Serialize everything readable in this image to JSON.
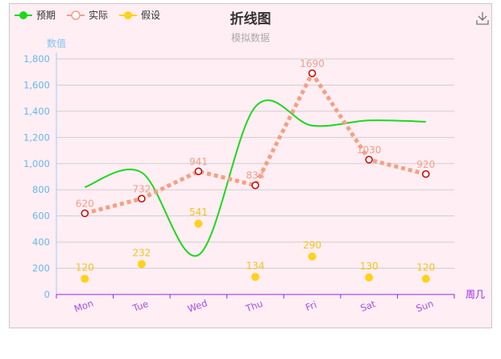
{
  "chart_data": {
    "type": "line",
    "title": "折线图",
    "subtitle": "模拟数据",
    "xlabel": "周几",
    "ylabel": "数值",
    "categories": [
      "Mon",
      "Tue",
      "Wed",
      "Thu",
      "Fri",
      "Sat",
      "Sun"
    ],
    "ylim": [
      0,
      1800
    ],
    "yticks": [
      "0",
      "200",
      "400",
      "600",
      "800",
      "1,000",
      "1,200",
      "1,400",
      "1,600",
      "1,800"
    ],
    "grid": true,
    "legend_position": "top-left",
    "series": [
      {
        "name": "预期",
        "style": "smooth-line",
        "color": "#1cd91c",
        "values": [
          820,
          932,
          301,
          1434,
          1290,
          1330,
          1320
        ],
        "labels": false
      },
      {
        "name": "实际",
        "style": "dashed-line-hollow-markers",
        "color": "#f4a084",
        "marker_stroke": "#cc0000",
        "values": [
          620,
          732,
          941,
          834,
          1690,
          1030,
          920
        ],
        "labels": true
      },
      {
        "name": "假设",
        "style": "scatter",
        "color": "#ffd21a",
        "values": [
          120,
          232,
          541,
          134,
          290,
          130,
          120
        ],
        "labels": true
      }
    ]
  },
  "toolbar": {
    "download_icon": "download-icon"
  }
}
